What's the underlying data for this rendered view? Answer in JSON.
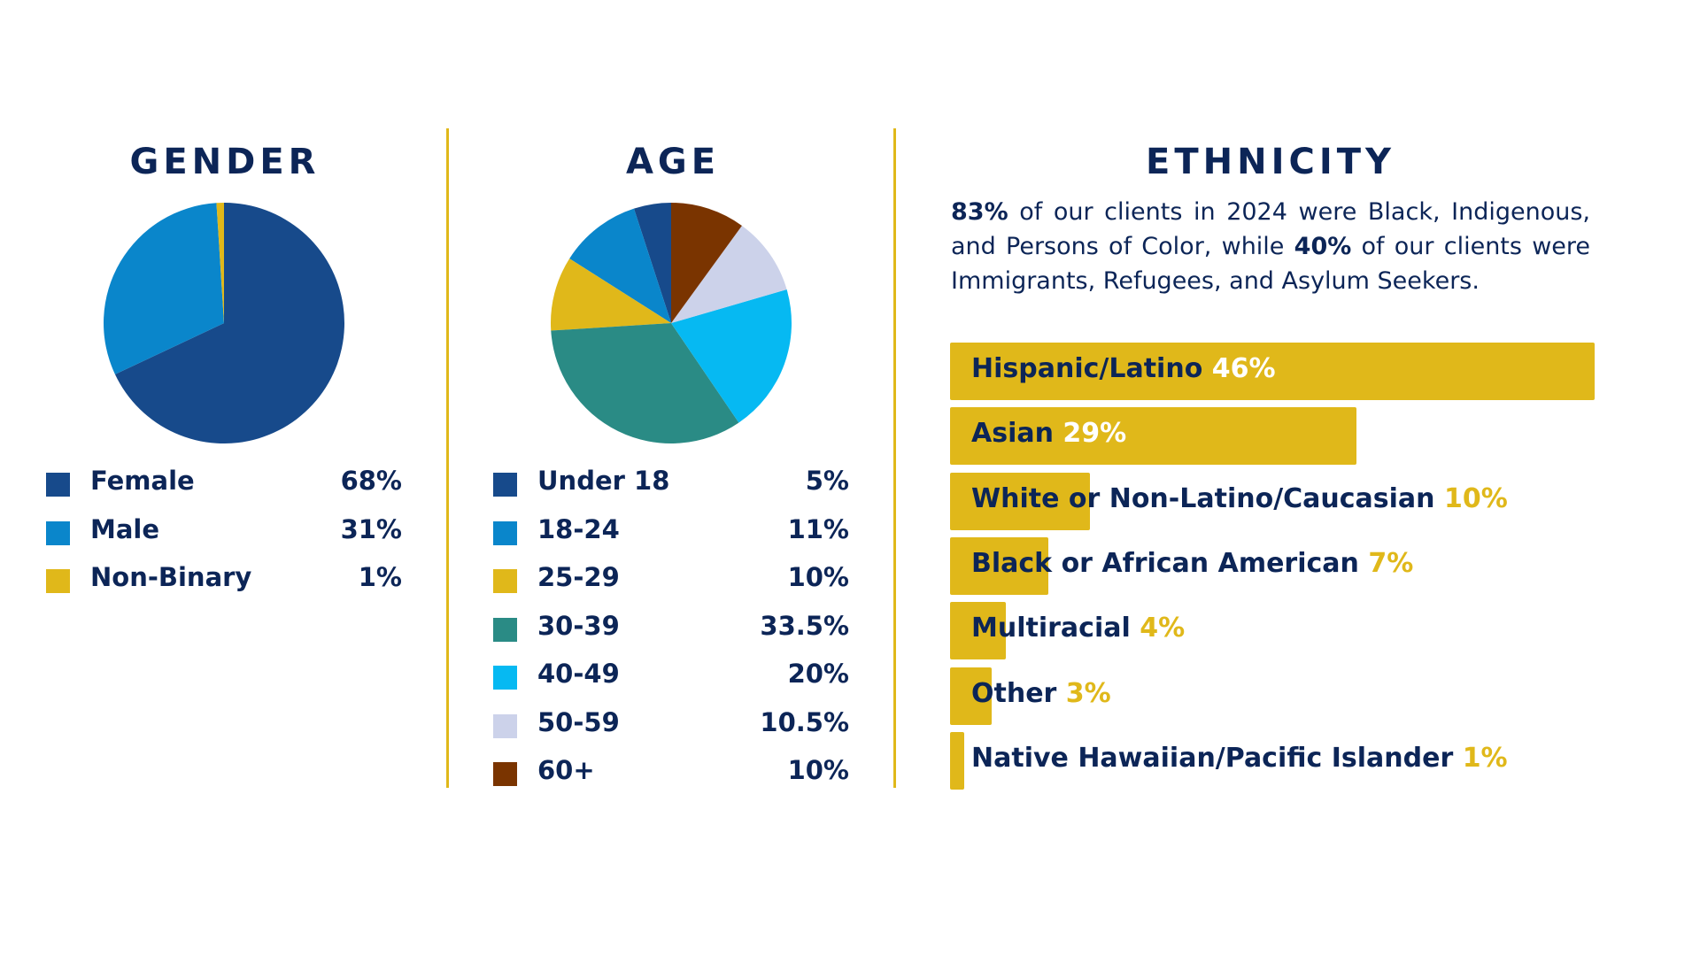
{
  "chart_data": [
    {
      "type": "pie",
      "title": "GENDER",
      "categories": [
        "Female",
        "Male",
        "Non-Binary"
      ],
      "values": [
        68,
        31,
        1
      ],
      "value_labels": [
        "68%",
        "31%",
        "1%"
      ],
      "colors": [
        "#174a8b",
        "#0a86cb",
        "#e0b81a"
      ],
      "start": "top",
      "direction": "clockwise"
    },
    {
      "type": "pie",
      "title": "AGE",
      "categories": [
        "Under 18",
        "18-24",
        "25-29",
        "30-39",
        "40-49",
        "50-59",
        "60+"
      ],
      "values": [
        5,
        11,
        10,
        33.5,
        20,
        10.5,
        10
      ],
      "value_labels": [
        "5%",
        "11%",
        "10%",
        "33.5%",
        "20%",
        "10.5%",
        "10%"
      ],
      "colors": [
        "#174a8b",
        "#0a86cb",
        "#e0b81a",
        "#2a8b85",
        "#06b9f2",
        "#ccd2ea",
        "#7a3400"
      ],
      "start": "top",
      "direction": "counterclockwise"
    },
    {
      "type": "bar",
      "orientation": "horizontal",
      "title": "ETHNICITY",
      "categories": [
        "Hispanic/Latino",
        "Asian",
        "White or Non-Latino/Caucasian",
        "Black or African American",
        "Multiracial",
        "Other",
        "Native Hawaiian/Pacific Islander"
      ],
      "values": [
        46,
        29,
        10,
        7,
        4,
        3,
        1
      ],
      "value_labels": [
        "46%",
        "29%",
        "10%",
        "7%",
        "4%",
        "3%",
        "1%"
      ],
      "xlim": [
        0,
        46
      ],
      "bar_color": "#e0b81a"
    }
  ],
  "ethnicity_intro": {
    "stat1": "83%",
    "text1": " of our clients in 2024 were Black, Indigenous, and Persons of Color, while ",
    "stat2": "40%",
    "text2": " of our clients were Immigrants, Refugees, and Asylum Seekers."
  },
  "colors": {
    "navy_text": "#0c2557",
    "accent_gold": "#e0b81a",
    "background": "#ffffff"
  }
}
